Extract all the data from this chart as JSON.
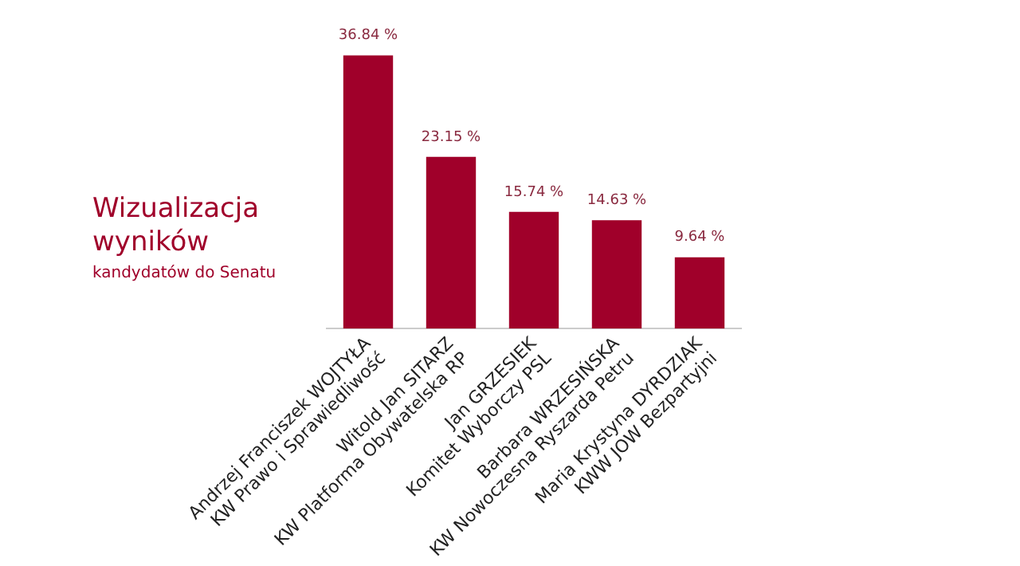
{
  "chart_data": {
    "type": "bar",
    "title": "Wizualizacja wyników",
    "subtitle": "kandydatów do Senatu",
    "categories": [
      "Andrzej Franciszek WOJTYŁA\nKW Prawo i Sprawiedliwość",
      "Witold Jan SITARZ\nKW Platforma Obywatelska RP",
      "Jan GRZESIEK\nKomitet Wyborczy PSL",
      "Barbara WRZESIŃSKA\nKW Nowoczesna Ryszarda Petru",
      "Maria Krystyna DYRDZIAK\nKWW JOW Bezpartyjni"
    ],
    "values": [
      36.84,
      23.15,
      15.74,
      14.63,
      9.64
    ],
    "value_labels": [
      "36.84 %",
      "23.15 %",
      "15.74 %",
      "14.63 %",
      "9.64 %"
    ],
    "color": "#a0002a",
    "grid": false,
    "legend": false
  }
}
